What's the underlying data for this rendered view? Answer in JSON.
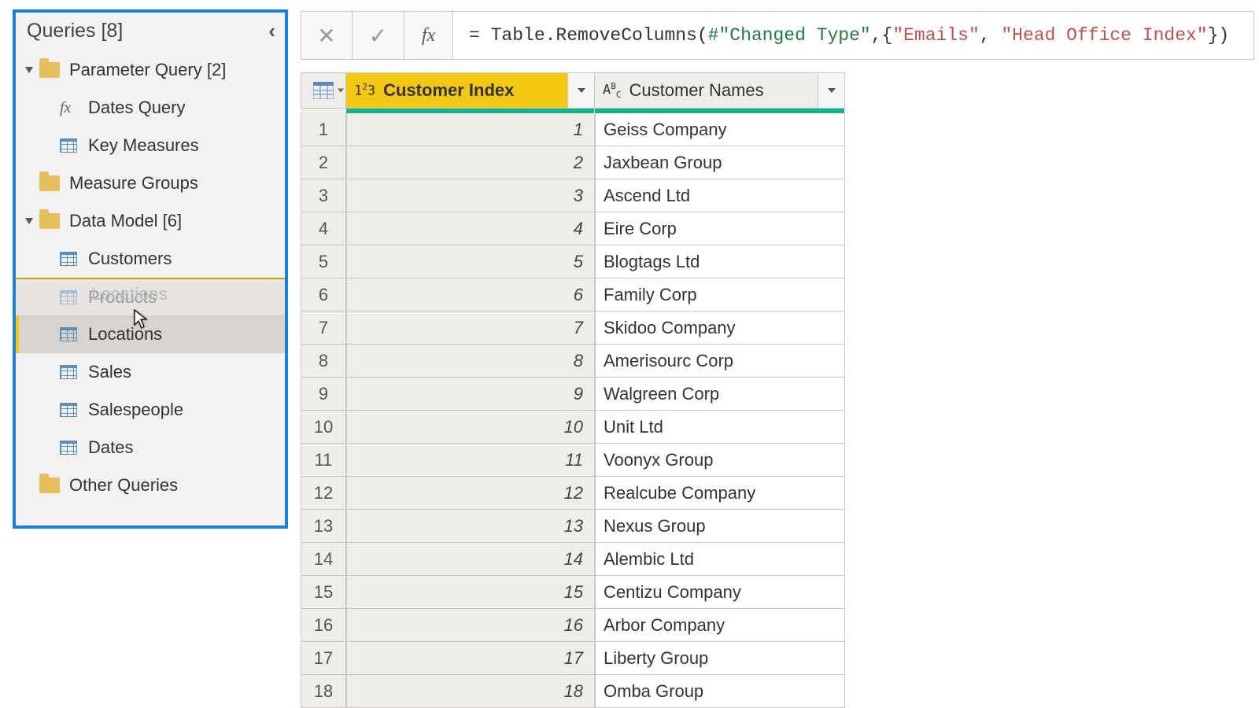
{
  "sidebar": {
    "title": "Queries [8]",
    "groups": [
      {
        "label": "Parameter Query [2]",
        "items": [
          {
            "label": "Dates Query",
            "icon": "fx"
          },
          {
            "label": "Key Measures",
            "icon": "table"
          }
        ]
      },
      {
        "label": "Measure Groups",
        "items": []
      },
      {
        "label": "Data Model [6]",
        "items": [
          {
            "label": "Customers",
            "icon": "table"
          },
          {
            "label": "Products",
            "icon": "table",
            "dragging": true,
            "ghost": "Locations",
            "cursor": true
          },
          {
            "label": "Locations",
            "icon": "table",
            "selected": true
          },
          {
            "label": "Sales",
            "icon": "table"
          },
          {
            "label": "Salespeople",
            "icon": "table"
          },
          {
            "label": "Dates",
            "icon": "table"
          }
        ]
      },
      {
        "label": "Other Queries",
        "items": []
      }
    ]
  },
  "formula": {
    "tokens": [
      {
        "t": "= ",
        "c": "plain"
      },
      {
        "t": "Table.RemoveColumns",
        "c": "fn"
      },
      {
        "t": "(",
        "c": "plain"
      },
      {
        "t": "#\"Changed Type\"",
        "c": "id"
      },
      {
        "t": ",{",
        "c": "plain"
      },
      {
        "t": "\"Emails\"",
        "c": "str"
      },
      {
        "t": ", ",
        "c": "plain"
      },
      {
        "t": "\"Head Office Index\"",
        "c": "str"
      },
      {
        "t": "})",
        "c": "plain"
      }
    ]
  },
  "grid": {
    "col_widths": {
      "rn": 58,
      "idx": 316,
      "name": 318
    },
    "dq_color": "#1aaf8b",
    "columns": [
      {
        "type_icon": "1²3",
        "title": "Customer Index",
        "selected": true
      },
      {
        "type_icon": "AᴮC",
        "title": "Customer Names",
        "selected": false
      }
    ],
    "rows": [
      {
        "n": 1,
        "idx": 1,
        "name": "Geiss Company"
      },
      {
        "n": 2,
        "idx": 2,
        "name": "Jaxbean Group"
      },
      {
        "n": 3,
        "idx": 3,
        "name": "Ascend Ltd"
      },
      {
        "n": 4,
        "idx": 4,
        "name": "Eire Corp"
      },
      {
        "n": 5,
        "idx": 5,
        "name": "Blogtags Ltd"
      },
      {
        "n": 6,
        "idx": 6,
        "name": "Family Corp"
      },
      {
        "n": 7,
        "idx": 7,
        "name": "Skidoo Company"
      },
      {
        "n": 8,
        "idx": 8,
        "name": "Amerisourc Corp"
      },
      {
        "n": 9,
        "idx": 9,
        "name": "Walgreen Corp"
      },
      {
        "n": 10,
        "idx": 10,
        "name": "Unit Ltd"
      },
      {
        "n": 11,
        "idx": 11,
        "name": "Voonyx Group"
      },
      {
        "n": 12,
        "idx": 12,
        "name": "Realcube Company"
      },
      {
        "n": 13,
        "idx": 13,
        "name": "Nexus Group"
      },
      {
        "n": 14,
        "idx": 14,
        "name": "Alembic Ltd"
      },
      {
        "n": 15,
        "idx": 15,
        "name": "Centizu Company"
      },
      {
        "n": 16,
        "idx": 16,
        "name": "Arbor Company"
      },
      {
        "n": 17,
        "idx": 17,
        "name": "Liberty Group"
      },
      {
        "n": 18,
        "idx": 18,
        "name": "Omba Group"
      }
    ]
  },
  "colors": {
    "highlight_border": "#1a7fd6",
    "selected_bg": "#d6d3d0",
    "accent_yellow": "#f2c811"
  }
}
